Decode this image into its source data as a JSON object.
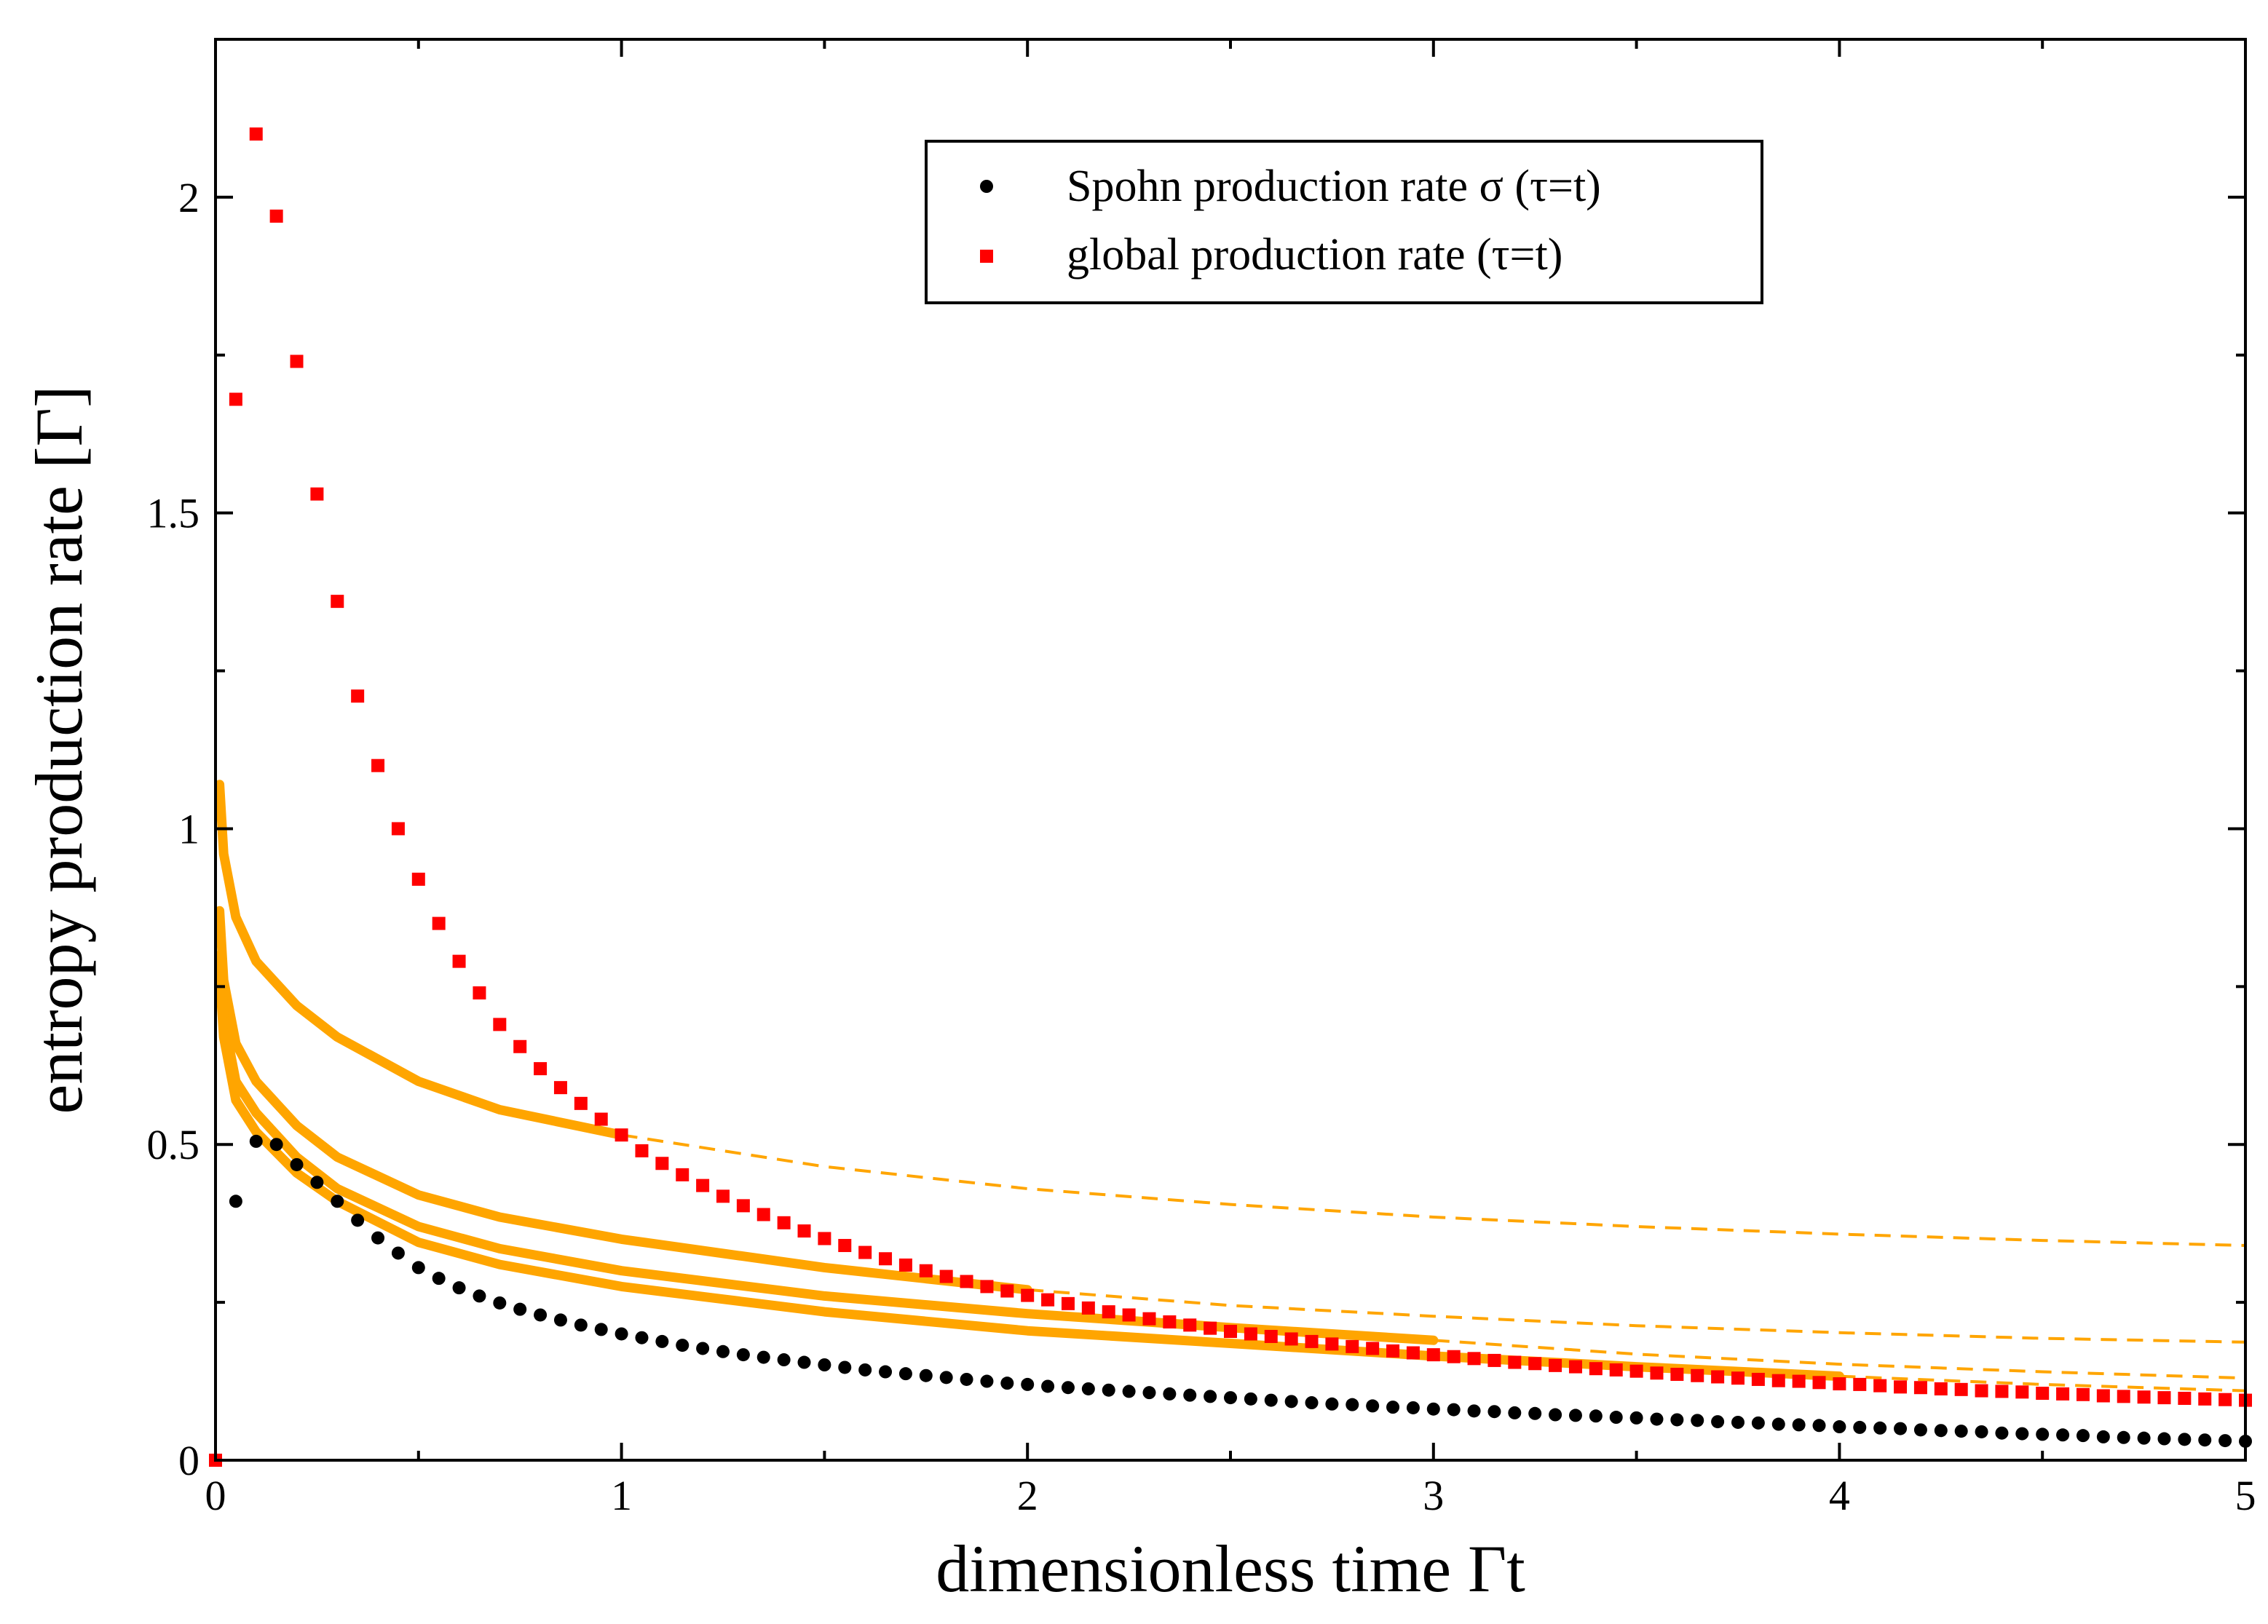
{
  "chart_data": {
    "type": "scatter",
    "title": "",
    "xlabel": "dimensionless time Γt",
    "ylabel": "entropy production rate [Γ]",
    "xlim": [
      0,
      5
    ],
    "ylim": [
      0,
      2.25
    ],
    "x_ticks": [
      0,
      1,
      2,
      3,
      4,
      5
    ],
    "x_tick_labels": [
      "0",
      "1",
      "2",
      "3",
      "4",
      "5"
    ],
    "y_ticks": [
      0,
      0.5,
      1,
      1.5,
      2
    ],
    "y_tick_labels": [
      "0",
      "0.5",
      "1",
      "1.5",
      "2"
    ],
    "grid": false,
    "legend": {
      "position": "top-center",
      "entries": [
        {
          "label": "Spohn production rate σ (τ=t)",
          "color": "#000000",
          "marker": "circle"
        },
        {
          "label": "global production rate (τ=t)",
          "color": "#ff0000",
          "marker": "square"
        }
      ]
    },
    "series": [
      {
        "name": "Spohn production rate σ (τ=t)",
        "color": "#000000",
        "marker": "circle",
        "x": [
          0.05,
          0.1,
          0.15,
          0.2,
          0.25,
          0.3,
          0.35,
          0.4,
          0.45,
          0.5,
          0.55,
          0.6,
          0.65,
          0.7,
          0.75,
          0.8,
          0.85,
          0.9,
          0.95,
          1.0,
          1.05,
          1.1,
          1.15,
          1.2,
          1.25,
          1.3,
          1.35,
          1.4,
          1.45,
          1.5,
          1.55,
          1.6,
          1.65,
          1.7,
          1.75,
          1.8,
          1.85,
          1.9,
          1.95,
          2.0,
          2.05,
          2.1,
          2.15,
          2.2,
          2.25,
          2.3,
          2.35,
          2.4,
          2.45,
          2.5,
          2.55,
          2.6,
          2.65,
          2.7,
          2.75,
          2.8,
          2.85,
          2.9,
          2.95,
          3.0,
          3.05,
          3.1,
          3.15,
          3.2,
          3.25,
          3.3,
          3.35,
          3.4,
          3.45,
          3.5,
          3.55,
          3.6,
          3.65,
          3.7,
          3.75,
          3.8,
          3.85,
          3.9,
          3.95,
          4.0,
          4.05,
          4.1,
          4.15,
          4.2,
          4.25,
          4.3,
          4.35,
          4.4,
          4.45,
          4.5,
          4.55,
          4.6,
          4.65,
          4.7,
          4.75,
          4.8,
          4.85,
          4.9,
          4.95,
          5.0
        ],
        "values": [
          0.41,
          0.505,
          0.5,
          0.468,
          0.44,
          0.41,
          0.38,
          0.352,
          0.328,
          0.305,
          0.288,
          0.273,
          0.26,
          0.249,
          0.239,
          0.23,
          0.222,
          0.214,
          0.207,
          0.2,
          0.194,
          0.188,
          0.182,
          0.177,
          0.172,
          0.167,
          0.163,
          0.159,
          0.155,
          0.151,
          0.147,
          0.143,
          0.14,
          0.137,
          0.134,
          0.131,
          0.128,
          0.125,
          0.122,
          0.12,
          0.117,
          0.115,
          0.113,
          0.111,
          0.109,
          0.107,
          0.105,
          0.103,
          0.101,
          0.099,
          0.097,
          0.095,
          0.093,
          0.091,
          0.089,
          0.088,
          0.086,
          0.084,
          0.083,
          0.081,
          0.08,
          0.078,
          0.077,
          0.075,
          0.074,
          0.072,
          0.071,
          0.07,
          0.068,
          0.067,
          0.065,
          0.064,
          0.063,
          0.061,
          0.06,
          0.059,
          0.057,
          0.056,
          0.055,
          0.053,
          0.052,
          0.051,
          0.05,
          0.048,
          0.047,
          0.046,
          0.045,
          0.043,
          0.042,
          0.041,
          0.04,
          0.039,
          0.037,
          0.036,
          0.035,
          0.034,
          0.033,
          0.032,
          0.031,
          0.03
        ]
      },
      {
        "name": "global production rate (τ=t)",
        "color": "#ff0000",
        "marker": "square",
        "x": [
          0.0,
          0.05,
          0.1,
          0.15,
          0.2,
          0.25,
          0.3,
          0.35,
          0.4,
          0.45,
          0.5,
          0.55,
          0.6,
          0.65,
          0.7,
          0.75,
          0.8,
          0.85,
          0.9,
          0.95,
          1.0,
          1.05,
          1.1,
          1.15,
          1.2,
          1.25,
          1.3,
          1.35,
          1.4,
          1.45,
          1.5,
          1.55,
          1.6,
          1.65,
          1.7,
          1.75,
          1.8,
          1.85,
          1.9,
          1.95,
          2.0,
          2.05,
          2.1,
          2.15,
          2.2,
          2.25,
          2.3,
          2.35,
          2.4,
          2.45,
          2.5,
          2.55,
          2.6,
          2.65,
          2.7,
          2.75,
          2.8,
          2.85,
          2.9,
          2.95,
          3.0,
          3.05,
          3.1,
          3.15,
          3.2,
          3.25,
          3.3,
          3.35,
          3.4,
          3.45,
          3.5,
          3.55,
          3.6,
          3.65,
          3.7,
          3.75,
          3.8,
          3.85,
          3.9,
          3.95,
          4.0,
          4.05,
          4.1,
          4.15,
          4.2,
          4.25,
          4.3,
          4.35,
          4.4,
          4.45,
          4.5,
          4.55,
          4.6,
          4.65,
          4.7,
          4.75,
          4.8,
          4.85,
          4.9,
          4.95,
          5.0
        ],
        "values": [
          0.0,
          1.68,
          2.1,
          1.97,
          1.74,
          1.53,
          1.36,
          1.21,
          1.1,
          1.0,
          0.92,
          0.85,
          0.79,
          0.74,
          0.69,
          0.655,
          0.62,
          0.59,
          0.565,
          0.54,
          0.515,
          0.49,
          0.47,
          0.452,
          0.435,
          0.418,
          0.403,
          0.389,
          0.376,
          0.363,
          0.351,
          0.34,
          0.329,
          0.319,
          0.309,
          0.3,
          0.291,
          0.283,
          0.275,
          0.268,
          0.261,
          0.254,
          0.248,
          0.241,
          0.235,
          0.23,
          0.224,
          0.219,
          0.214,
          0.209,
          0.204,
          0.2,
          0.196,
          0.192,
          0.188,
          0.184,
          0.18,
          0.177,
          0.173,
          0.17,
          0.167,
          0.164,
          0.161,
          0.158,
          0.155,
          0.153,
          0.15,
          0.148,
          0.145,
          0.143,
          0.141,
          0.138,
          0.136,
          0.134,
          0.132,
          0.13,
          0.128,
          0.126,
          0.125,
          0.123,
          0.121,
          0.12,
          0.118,
          0.116,
          0.115,
          0.113,
          0.112,
          0.11,
          0.109,
          0.108,
          0.106,
          0.105,
          0.104,
          0.102,
          0.101,
          0.1,
          0.099,
          0.098,
          0.097,
          0.096,
          0.095
        ]
      }
    ],
    "curves": [
      {
        "name": "orange curve 1 (solid)",
        "color": "#ffa500",
        "style": "solid",
        "x": [
          0.01,
          0.02,
          0.05,
          0.1,
          0.2,
          0.3,
          0.5,
          0.7,
          1.0
        ],
        "values": [
          1.07,
          0.96,
          0.86,
          0.79,
          0.72,
          0.67,
          0.6,
          0.555,
          0.515
        ]
      },
      {
        "name": "orange curve 1 (dashed)",
        "color": "#ffa500",
        "style": "dashed",
        "x": [
          1.0,
          1.5,
          2.0,
          2.5,
          3.0,
          3.5,
          4.0,
          4.5,
          5.0
        ],
        "values": [
          0.515,
          0.465,
          0.43,
          0.405,
          0.385,
          0.37,
          0.358,
          0.348,
          0.34
        ]
      },
      {
        "name": "orange curve 2 (solid)",
        "color": "#ffa500",
        "style": "solid",
        "x": [
          0.01,
          0.02,
          0.05,
          0.1,
          0.2,
          0.3,
          0.5,
          0.7,
          1.0,
          1.5,
          2.0
        ],
        "values": [
          0.87,
          0.76,
          0.66,
          0.6,
          0.53,
          0.48,
          0.42,
          0.385,
          0.35,
          0.305,
          0.27
        ]
      },
      {
        "name": "orange curve 2 (dashed)",
        "color": "#ffa500",
        "style": "dashed",
        "x": [
          2.0,
          2.5,
          3.0,
          3.5,
          4.0,
          4.5,
          5.0
        ],
        "values": [
          0.27,
          0.245,
          0.228,
          0.213,
          0.202,
          0.193,
          0.187
        ]
      },
      {
        "name": "orange curve 3 (solid)",
        "color": "#ffa500",
        "style": "solid",
        "x": [
          0.01,
          0.02,
          0.05,
          0.1,
          0.2,
          0.3,
          0.5,
          0.7,
          1.0,
          1.5,
          2.0,
          2.5,
          3.0
        ],
        "values": [
          0.8,
          0.7,
          0.6,
          0.55,
          0.48,
          0.43,
          0.37,
          0.335,
          0.3,
          0.26,
          0.232,
          0.21,
          0.19
        ]
      },
      {
        "name": "orange curve 3 (dashed)",
        "color": "#ffa500",
        "style": "dashed",
        "x": [
          3.0,
          3.5,
          4.0,
          4.5,
          5.0
        ],
        "values": [
          0.19,
          0.168,
          0.152,
          0.14,
          0.13
        ]
      },
      {
        "name": "orange curve 4 (solid)",
        "color": "#ffa500",
        "style": "solid",
        "x": [
          0.01,
          0.02,
          0.05,
          0.1,
          0.2,
          0.3,
          0.5,
          0.7,
          1.0,
          1.5,
          2.0,
          2.5,
          3.0,
          3.5,
          4.0
        ],
        "values": [
          0.77,
          0.67,
          0.57,
          0.52,
          0.455,
          0.41,
          0.345,
          0.31,
          0.275,
          0.235,
          0.205,
          0.185,
          0.165,
          0.148,
          0.133
        ]
      },
      {
        "name": "orange curve 4 (dashed)",
        "color": "#ffa500",
        "style": "dashed",
        "x": [
          4.0,
          4.5,
          5.0
        ],
        "values": [
          0.133,
          0.12,
          0.11
        ]
      }
    ]
  }
}
